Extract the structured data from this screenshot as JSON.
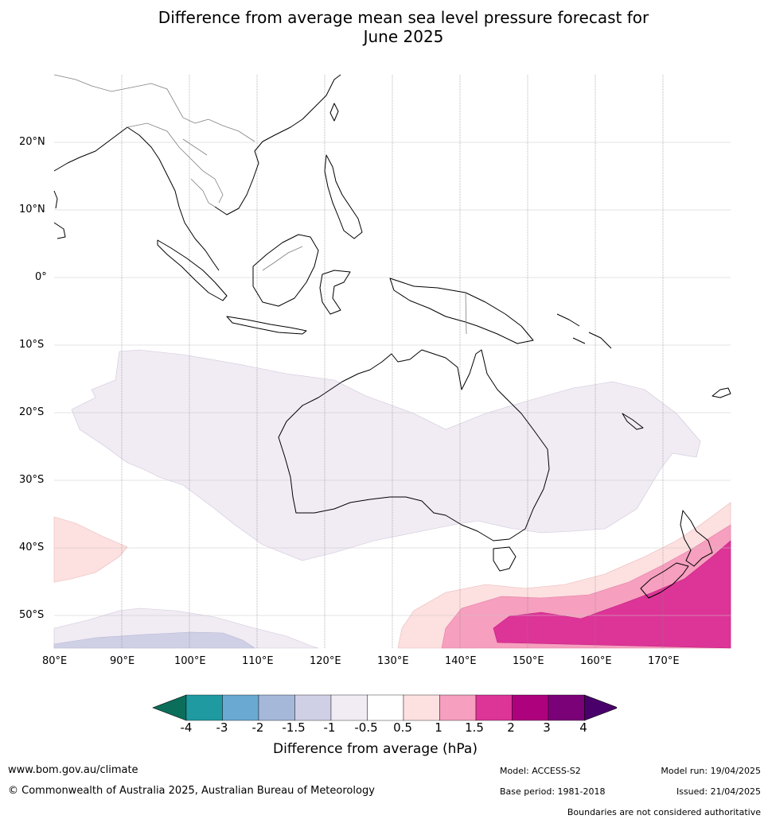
{
  "title_line1": "Difference from average mean sea level pressure forecast for",
  "title_line2": "June 2025",
  "lat_ticks": [
    "20°N",
    "10°N",
    "0°",
    "10°S",
    "20°S",
    "30°S",
    "40°S",
    "50°S"
  ],
  "lon_ticks": [
    "80°E",
    "90°E",
    "100°E",
    "110°E",
    "120°E",
    "130°E",
    "140°E",
    "150°E",
    "160°E",
    "170°E"
  ],
  "colorbar": {
    "labels": [
      "-4",
      "-3",
      "-2",
      "-1.5",
      "-1",
      "-0.5",
      "0.5",
      "1",
      "1.5",
      "2",
      "3",
      "4"
    ],
    "colors": [
      "#0b6e5a",
      "#1f9aa0",
      "#6aa9d2",
      "#a6b8da",
      "#cfd0e5",
      "#f1ebf4",
      "#ffffff",
      "#fde0e0",
      "#f69fbe",
      "#dd3497",
      "#ae017e",
      "#7a0177",
      "#49006a"
    ],
    "title": "Difference from average (hPa)"
  },
  "footer": {
    "url": "www.bom.gov.au/climate",
    "copyright": "© Commonwealth of Australia 2025, Australian Bureau of Meteorology",
    "model": "Model: ACCESS-S2",
    "model_run": "Model run: 19/04/2025",
    "base_period": "Base period: 1981-2018",
    "issued": "Issued: 21/04/2025",
    "boundaries": "Boundaries are not considered authoritative"
  }
}
